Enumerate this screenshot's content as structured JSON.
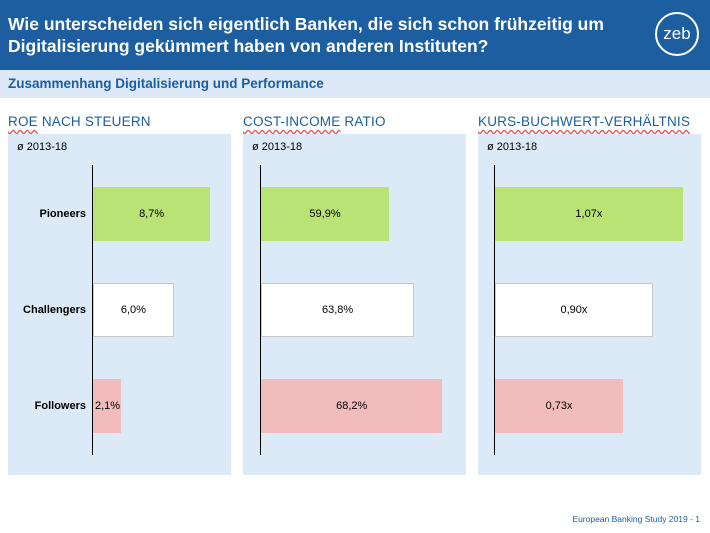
{
  "header": {
    "title": "Wie unterscheiden sich eigentlich Banken, die sich schon frühzeitig um Digitalisierung gekümmert haben von anderen Instituten?",
    "logo": "zeb"
  },
  "subtitle": "Zusammenhang Digitalisierung und Performance",
  "footer": "European Banking Study 2019 - 1",
  "colors": {
    "header_bg": "#1c5ea0",
    "panel_bg": "#dce9f7",
    "pioneers": "#b9e375",
    "challengers": "#ffffff",
    "followers": "#f3bcbc"
  },
  "chart_data": [
    {
      "type": "bar",
      "orientation": "horizontal",
      "title": "ROE NACH STEUERN",
      "title_first_word": "ROE",
      "title_rest": "NACH STEUERN",
      "subtitle": "ø 2013-18",
      "categories": [
        "Pioneers",
        "Challengers",
        "Followers"
      ],
      "values": [
        8.7,
        6.0,
        2.1
      ],
      "labels": [
        "8,7%",
        "6,0%",
        "2,1%"
      ],
      "unit": "%",
      "xlim": [
        0,
        9.5
      ]
    },
    {
      "type": "bar",
      "orientation": "horizontal",
      "title": "COST-INCOME RATIO",
      "title_first_word": "COST-INCOME",
      "title_rest": "RATIO",
      "subtitle": "ø 2013-18",
      "categories": [
        "Pioneers",
        "Challengers",
        "Followers"
      ],
      "values": [
        59.9,
        63.8,
        68.2
      ],
      "labels": [
        "59,9%",
        "63,8%",
        "68,2%"
      ],
      "unit": "%",
      "xlim": [
        40,
        70
      ]
    },
    {
      "type": "bar",
      "orientation": "horizontal",
      "title": "KURS-BUCHWERT-VERHÄLTNIS",
      "title_first_word": "KURS-BUCHWERT-VERHÄLTNIS",
      "title_rest": "",
      "subtitle": "ø 2013-18",
      "categories": [
        "Pioneers",
        "Challengers",
        "Followers"
      ],
      "values": [
        1.07,
        0.9,
        0.73
      ],
      "labels": [
        "1,07x",
        "0,90x",
        "0,73x"
      ],
      "unit": "x",
      "xlim": [
        0,
        1.1
      ]
    }
  ]
}
